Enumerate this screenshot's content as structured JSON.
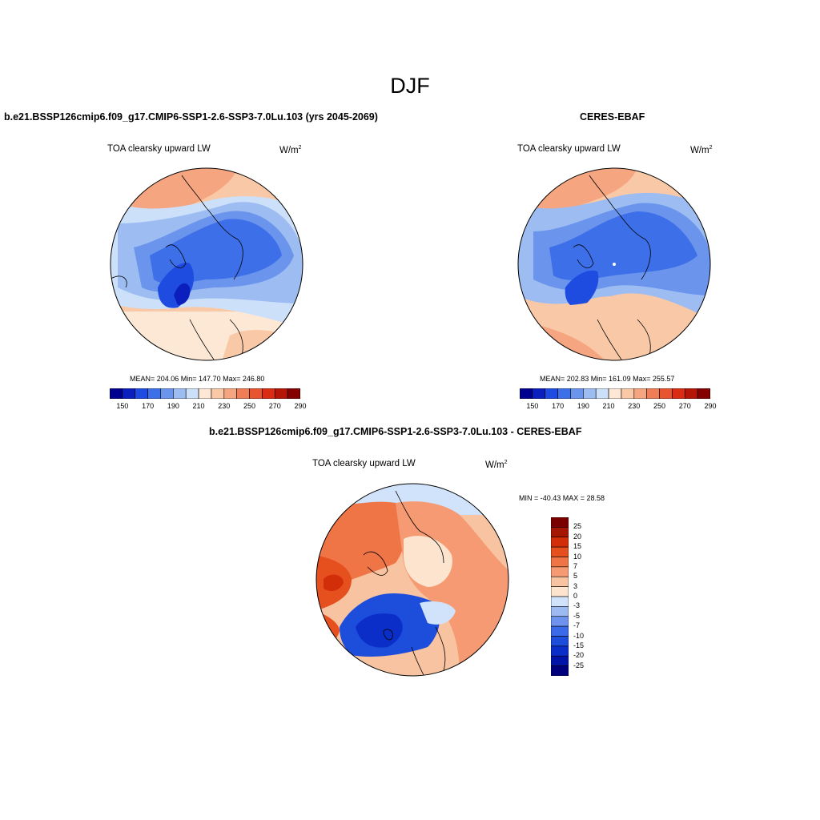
{
  "season": "DJF",
  "colors": {
    "abs_levels": [
      "#00008f",
      "#0a1fbd",
      "#1f4ce0",
      "#3d6fe8",
      "#6b95ec",
      "#9dbdf2",
      "#cde0fa",
      "#fde8d6",
      "#f9c9a7",
      "#f5a57f",
      "#ef7d57",
      "#e8552e",
      "#d92c13",
      "#b51507",
      "#850000"
    ],
    "diff_levels": [
      "#00007d",
      "#0015a8",
      "#0a2ec7",
      "#1c4ddb",
      "#3a6ae8",
      "#6d93ee",
      "#9dbaf3",
      "#d0e3fb",
      "#fce4cf",
      "#f8c3a0",
      "#f59a72",
      "#ef7446",
      "#e6501f",
      "#d12e09",
      "#a51603",
      "#7a0000"
    ]
  },
  "panels": [
    {
      "title": "b.e21.BSSP126cmip6.f09_g17.CMIP6-SSP1-2.6-SSP3-7.0Lu.103 (yrs 2045-2069)",
      "variable": "TOA clearsky upward LW",
      "units": "W/m",
      "units_sup": "2",
      "stats": "MEAN= 204.06  Min= 147.70  Max= 246.80",
      "colorbar_labels": [
        "150",
        "170",
        "190",
        "210",
        "230",
        "250",
        "270",
        "290"
      ]
    },
    {
      "title": "CERES-EBAF",
      "variable": "TOA clearsky upward LW",
      "units": "W/m",
      "units_sup": "2",
      "stats": "MEAN= 202.83  Min= 161.09  Max= 255.57",
      "colorbar_labels": [
        "150",
        "170",
        "190",
        "210",
        "230",
        "250",
        "270",
        "290"
      ]
    }
  ],
  "difference": {
    "title": "b.e21.BSSP126cmip6.f09_g17.CMIP6-SSP1-2.6-SSP3-7.0Lu.103 - CERES-EBAF",
    "variable": "TOA clearsky upward LW",
    "units": "W/m",
    "units_sup": "2",
    "minmax": "MIN = -40.43 MAX =  28.58",
    "colorbar_labels": [
      "25",
      "20",
      "15",
      "10",
      "7",
      "5",
      "3",
      "0",
      "-3",
      "-5",
      "-7",
      "-10",
      "-15",
      "-20",
      "-25"
    ]
  }
}
